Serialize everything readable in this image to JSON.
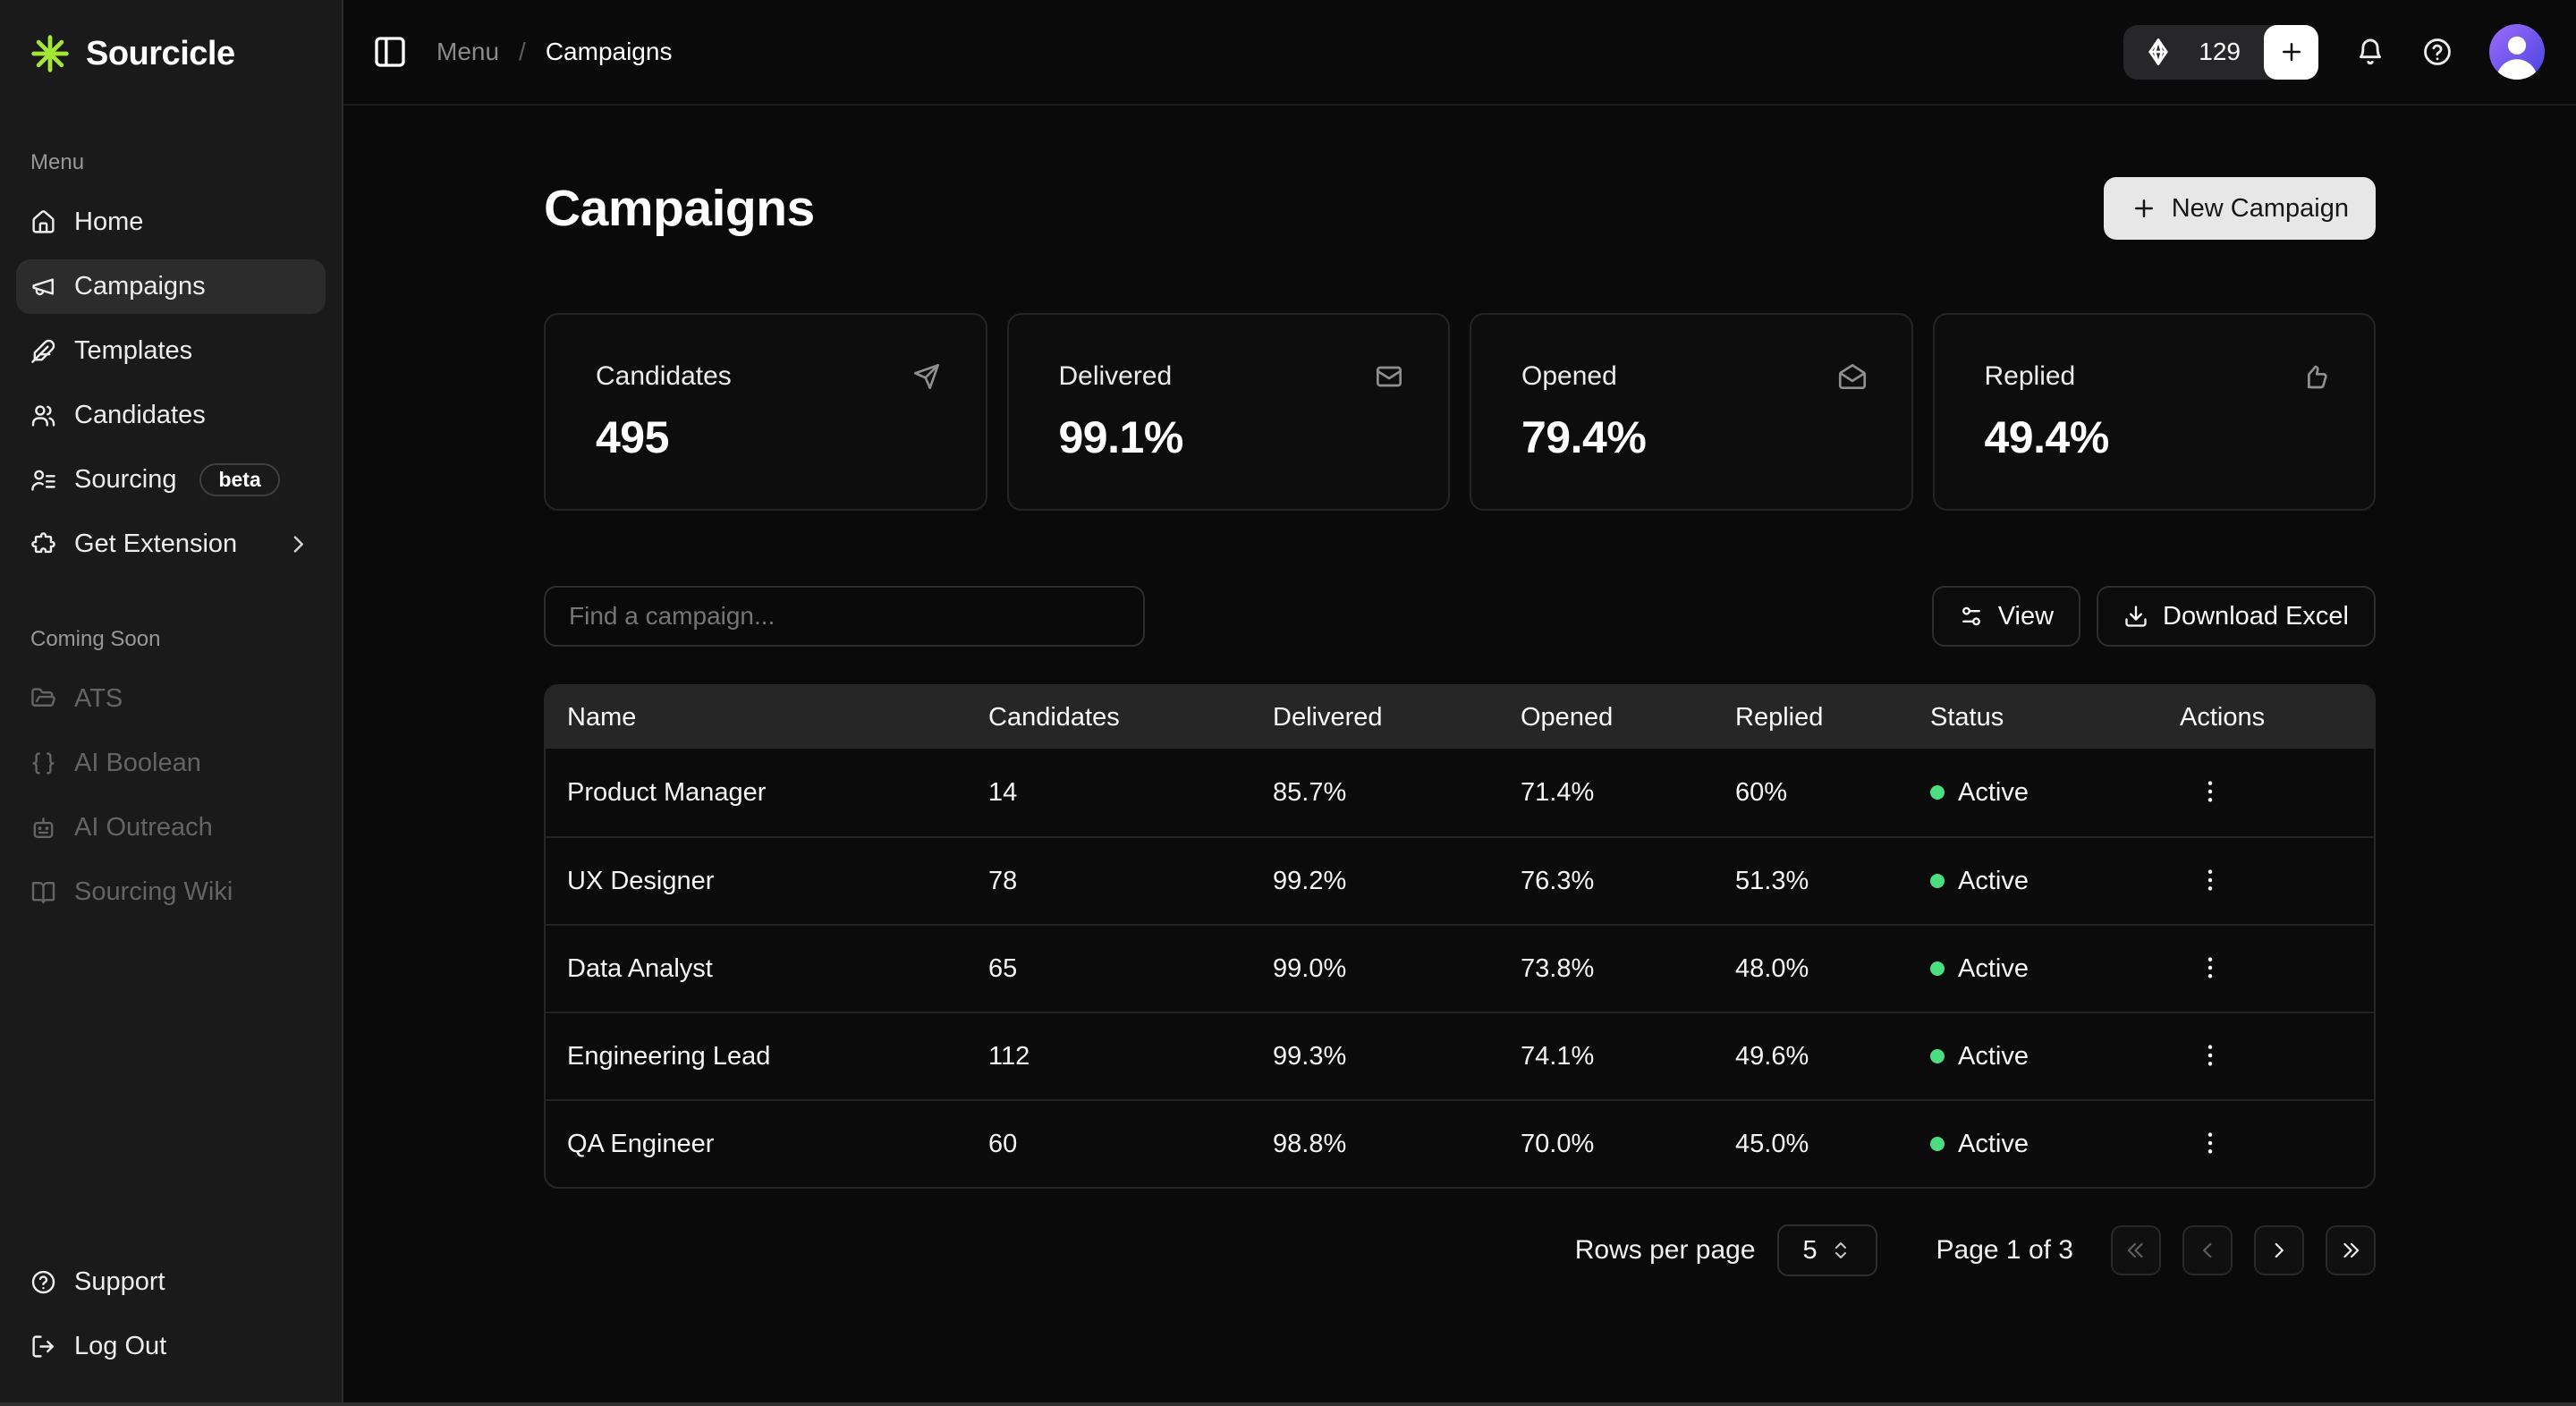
{
  "brand": {
    "name": "Sourcicle"
  },
  "sidebar": {
    "menu_label": "Menu",
    "items": [
      {
        "label": "Home",
        "icon": "home",
        "active": false
      },
      {
        "label": "Campaigns",
        "icon": "megaphone",
        "active": true
      },
      {
        "label": "Templates",
        "icon": "feather",
        "active": false
      },
      {
        "label": "Candidates",
        "icon": "users",
        "active": false
      },
      {
        "label": "Sourcing",
        "icon": "user-list",
        "active": false,
        "badge": "beta"
      },
      {
        "label": "Get Extension",
        "icon": "puzzle",
        "active": false,
        "chevron": true
      }
    ],
    "coming_soon_label": "Coming Soon",
    "coming_soon_items": [
      {
        "label": "ATS",
        "icon": "folder"
      },
      {
        "label": "AI Boolean",
        "icon": "braces"
      },
      {
        "label": "AI Outreach",
        "icon": "bot"
      },
      {
        "label": "Sourcing Wiki",
        "icon": "book-open"
      }
    ],
    "footer_items": [
      {
        "label": "Support",
        "icon": "circle-help"
      },
      {
        "label": "Log Out",
        "icon": "log-out"
      }
    ]
  },
  "topbar": {
    "breadcrumb": {
      "parent": "Menu",
      "separator": "/",
      "current": "Campaigns"
    },
    "credits": "129"
  },
  "page": {
    "title": "Campaigns",
    "new_campaign_label": "New Campaign"
  },
  "stats_cards": [
    {
      "label": "Candidates",
      "value": "495",
      "icon": "send"
    },
    {
      "label": "Delivered",
      "value": "99.1%",
      "icon": "mail"
    },
    {
      "label": "Opened",
      "value": "79.4%",
      "icon": "mail-open"
    },
    {
      "label": "Replied",
      "value": "49.4%",
      "icon": "thumbs-up"
    }
  ],
  "toolbar": {
    "search_placeholder": "Find a campaign...",
    "view_label": "View",
    "download_label": "Download Excel"
  },
  "table": {
    "columns": [
      "Name",
      "Candidates",
      "Delivered",
      "Opened",
      "Replied",
      "Status",
      "Actions"
    ],
    "rows": [
      {
        "name": "Product Manager",
        "candidates": "14",
        "delivered": "85.7%",
        "opened": "71.4%",
        "replied": "60%",
        "status": "Active"
      },
      {
        "name": "UX Designer",
        "candidates": "78",
        "delivered": "99.2%",
        "opened": "76.3%",
        "replied": "51.3%",
        "status": "Active"
      },
      {
        "name": "Data Analyst",
        "candidates": "65",
        "delivered": "99.0%",
        "opened": "73.8%",
        "replied": "48.0%",
        "status": "Active"
      },
      {
        "name": "Engineering Lead",
        "candidates": "112",
        "delivered": "99.3%",
        "opened": "74.1%",
        "replied": "49.6%",
        "status": "Active"
      },
      {
        "name": "QA Engineer",
        "candidates": "60",
        "delivered": "98.8%",
        "opened": "70.0%",
        "replied": "45.0%",
        "status": "Active"
      }
    ]
  },
  "pagination": {
    "rows_per_page_label": "Rows per page",
    "rows_per_page_value": "5",
    "page_info": "Page 1 of 3"
  },
  "colors": {
    "accent": "#a3e635",
    "status_active": "#4ade80",
    "sidebar_bg": "#1a1a1a",
    "main_bg": "#0a0a0a",
    "avatar_gradient_start": "#9d6bfa",
    "avatar_gradient_end": "#4943e0"
  }
}
